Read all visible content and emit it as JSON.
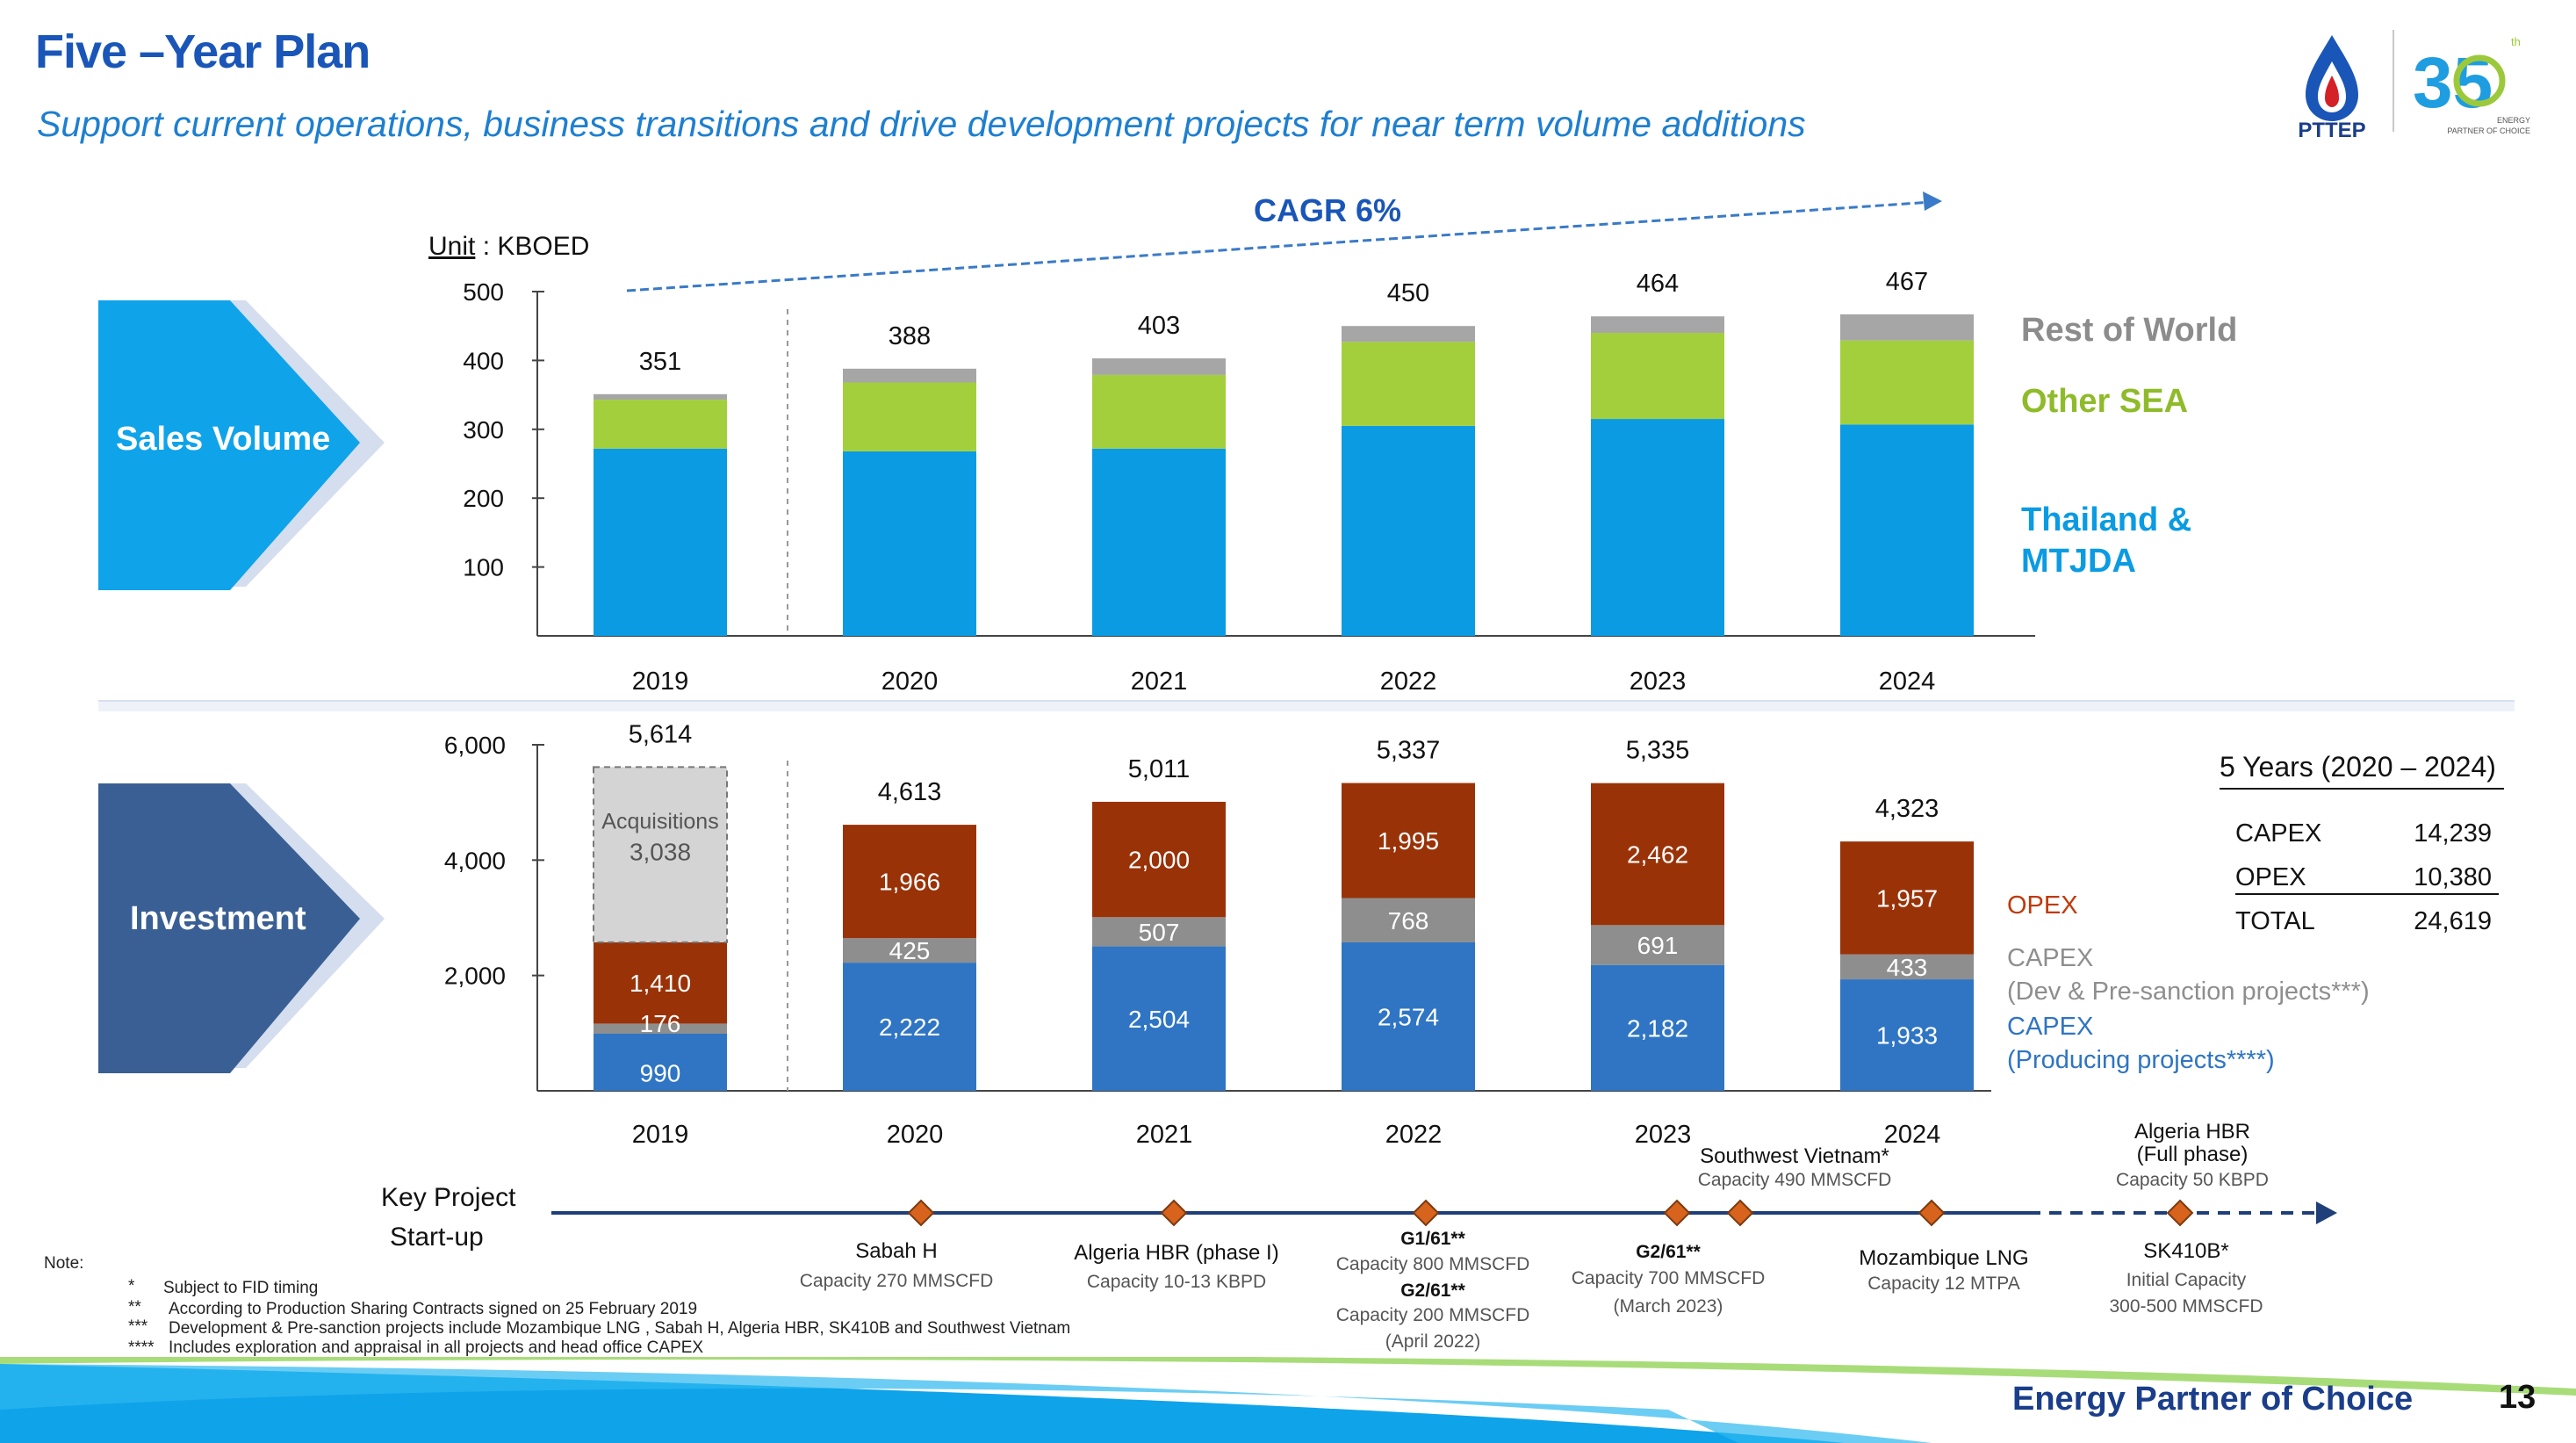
{
  "header": {
    "title": "Five –Year Plan",
    "subtitle": "Support current operations, business transitions and drive development projects for near term volume additions"
  },
  "logo": {
    "company": "PTTEP",
    "anniversary_number": "35",
    "anniversary_suffix": "th",
    "anniversary_line1": "ENERGY",
    "anniversary_line2": "PARTNER OF CHOICE"
  },
  "section_labels": {
    "sales": "Sales Volume",
    "investment": "Investment"
  },
  "colors": {
    "brand_blue": "#1a56b8",
    "thailand": "#0a9be2",
    "other_sea": "#a3cf3c",
    "rest_of_world": "#a6a6a6",
    "capex_producing": "#2f75c4",
    "capex_dev": "#8e8e8e",
    "opex": "#9a3208",
    "acquisitions": "#d4d4d4"
  },
  "chart_data": [
    {
      "type": "bar",
      "stacked": true,
      "unit_label": "Unit : KBOED",
      "unit_underlined": "Unit",
      "unit_rest": " : KBOED",
      "categories": [
        "2019",
        "2020",
        "2021",
        "2022",
        "2023",
        "2024"
      ],
      "series": [
        {
          "name": "Thailand & MTJDA",
          "values": [
            272,
            268,
            272,
            305,
            315,
            307
          ]
        },
        {
          "name": "Other SEA",
          "values": [
            71,
            100,
            107,
            122,
            125,
            122
          ]
        },
        {
          "name": "Rest of World",
          "values": [
            8,
            20,
            24,
            23,
            24,
            38
          ]
        }
      ],
      "legend_text": [
        "Rest of World",
        "Other SEA",
        "Thailand  &",
        "MTJDA"
      ],
      "totals": [
        "351",
        "388",
        "403",
        "450",
        "464",
        "467"
      ],
      "yticks": [
        "500",
        "400",
        "300",
        "200",
        "100"
      ],
      "ylim": [
        0,
        500
      ],
      "trend_label": "CAGR 6%"
    },
    {
      "type": "bar",
      "stacked": true,
      "categories": [
        "2019",
        "2020",
        "2021",
        "2022",
        "2023",
        "2024"
      ],
      "series": [
        {
          "name": "CAPEX (Producing projects****)",
          "values": [
            990,
            2222,
            2504,
            2574,
            2182,
            1933
          ]
        },
        {
          "name": "CAPEX (Dev & Pre-sanction projects***)",
          "values": [
            176,
            425,
            507,
            768,
            691,
            433
          ]
        },
        {
          "name": "OPEX",
          "values": [
            1410,
            1966,
            2000,
            1995,
            2462,
            1957
          ]
        },
        {
          "name": "Acquisitions",
          "values": [
            3038,
            0,
            0,
            0,
            0,
            0
          ]
        }
      ],
      "segment_labels": [
        [
          "990",
          "176",
          "1,410",
          "3,038"
        ],
        [
          "2,222",
          "425",
          "1,966",
          ""
        ],
        [
          "2,504",
          "507",
          "2,000",
          ""
        ],
        [
          "2,574",
          "768",
          "1,995",
          ""
        ],
        [
          "2,182",
          "691",
          "2,462",
          ""
        ],
        [
          "1,933",
          "433",
          "1,957",
          ""
        ]
      ],
      "acquisitions_label": "Acquisitions",
      "totals": [
        "5,614",
        "4,613",
        "5,011",
        "5,337",
        "5,335",
        "4,323"
      ],
      "yticks": [
        "6,000",
        "4,000",
        "2,000"
      ],
      "ylim": [
        0,
        6000
      ],
      "legend_text": [
        "OPEX",
        "CAPEX",
        "(Dev & Pre-sanction projects***)",
        "CAPEX",
        "(Producing projects****)"
      ]
    }
  ],
  "summary_table": {
    "title": "5 Years (2020 – 2024)",
    "rows": [
      {
        "label": "CAPEX",
        "value": "14,239"
      },
      {
        "label": "OPEX",
        "value": "10,380"
      },
      {
        "label": "TOTAL",
        "value": "24,619"
      }
    ]
  },
  "timeline": {
    "label_line1": "Key Project",
    "label_line2": "Start-up",
    "years": [
      "2019",
      "2020",
      "2021",
      "2022",
      "2023",
      "2024"
    ],
    "milestones": [
      {
        "lines": [
          "Sabah H",
          "Capacity 270 MMSCFD"
        ]
      },
      {
        "lines": [
          "Algeria HBR  (phase I)",
          "Capacity 10-13 KBPD"
        ]
      },
      {
        "lines": [
          "G1/61**",
          "Capacity 800 MMSCFD",
          "G2/61**",
          "Capacity 200 MMSCFD",
          "(April 2022)"
        ]
      },
      {
        "lines": [
          "G2/61**",
          "Capacity 700 MMSCFD",
          "(March 2023)"
        ]
      },
      {
        "lines": [
          "Southwest Vietnam*",
          "Capacity 490 MMSCFD"
        ]
      },
      {
        "lines": [
          "Mozambique LNG",
          "Capacity 12 MTPA"
        ]
      },
      {
        "lines": [
          "Algeria HBR",
          "(Full phase)",
          "Capacity 50 KBPD"
        ]
      },
      {
        "lines": [
          "SK410B*",
          "Initial Capacity",
          "300-500 MMSCFD"
        ]
      }
    ]
  },
  "notes": {
    "heading": "Note:",
    "items": [
      {
        "mark": "*",
        "text": "Subject to FID timing"
      },
      {
        "mark": "**",
        "text": "According to Production Sharing Contracts signed on 25 February 2019"
      },
      {
        "mark": "***",
        "text": "Development & Pre-sanction projects include Mozambique LNG , Sabah H, Algeria HBR, SK410B and Southwest Vietnam"
      },
      {
        "mark": "****",
        "text": "Includes exploration and appraisal in all projects and head office CAPEX"
      }
    ]
  },
  "footer": {
    "tagline": "Energy Partner of Choice",
    "page": "13"
  }
}
